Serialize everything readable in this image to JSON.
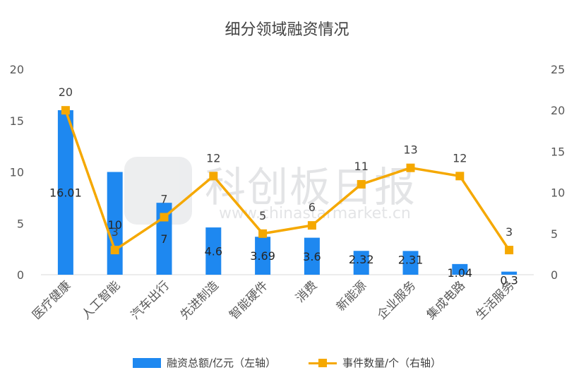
{
  "title": "细分领域融资情况",
  "watermark": {
    "text": "科创板日报",
    "url": "www.chinastarmarket.cn"
  },
  "colors": {
    "bar": "#1e88f0",
    "line": "#f5a800",
    "axis_text": "#595959",
    "baseline": "#d9d9d9"
  },
  "chart_data": {
    "type": "bar",
    "categories": [
      "医疗健康",
      "人工智能",
      "汽车出行",
      "先进制造",
      "智能硬件",
      "消费",
      "新能源",
      "企业服务",
      "集成电路",
      "生活服务"
    ],
    "series": [
      {
        "name": "融资总额/亿元（左轴）",
        "type": "bar",
        "axis": "left",
        "values": [
          16.01,
          10,
          7,
          4.6,
          3.69,
          3.6,
          2.32,
          2.31,
          1.04,
          0.3
        ],
        "labels": [
          "16.01",
          "",
          "7",
          "4.6",
          "3.69",
          "3.6",
          "2.32",
          "2.31",
          "1.04",
          "0.3"
        ]
      },
      {
        "name": "事件数量/个（右轴）",
        "type": "line",
        "axis": "right",
        "values": [
          20,
          3,
          7,
          12,
          5,
          6,
          11,
          13,
          12,
          3
        ],
        "labels": [
          "20",
          "3",
          "7",
          "12",
          "5",
          "6",
          "11",
          "13",
          "12",
          "3"
        ],
        "extra_label": "10"
      }
    ],
    "ylim_left": [
      0,
      20
    ],
    "yticks_left": [
      0,
      5,
      10,
      15,
      20
    ],
    "ylim_right": [
      0,
      25
    ],
    "yticks_right": [
      0,
      5,
      10,
      15,
      20,
      25
    ],
    "legend_position": "bottom",
    "grid": false
  }
}
